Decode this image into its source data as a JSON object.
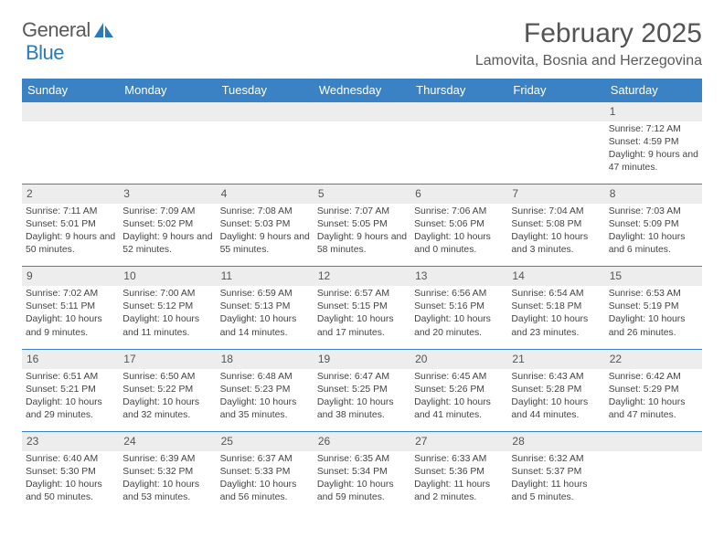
{
  "brand": {
    "part1": "General",
    "part2": "Blue",
    "color1": "#5a5a5a",
    "color2": "#2a7ab8"
  },
  "title": "February 2025",
  "location": "Lamovita, Bosnia and Herzegovina",
  "colors": {
    "header_bg": "#3b82c4",
    "header_text": "#ffffff",
    "daynum_bg": "#ededed",
    "border": "#3b82c4"
  },
  "day_headers": [
    "Sunday",
    "Monday",
    "Tuesday",
    "Wednesday",
    "Thursday",
    "Friday",
    "Saturday"
  ],
  "weeks": [
    [
      null,
      null,
      null,
      null,
      null,
      null,
      {
        "n": "1",
        "sr": "7:12 AM",
        "ss": "4:59 PM",
        "dl": "9 hours and 47 minutes."
      }
    ],
    [
      {
        "n": "2",
        "sr": "7:11 AM",
        "ss": "5:01 PM",
        "dl": "9 hours and 50 minutes."
      },
      {
        "n": "3",
        "sr": "7:09 AM",
        "ss": "5:02 PM",
        "dl": "9 hours and 52 minutes."
      },
      {
        "n": "4",
        "sr": "7:08 AM",
        "ss": "5:03 PM",
        "dl": "9 hours and 55 minutes."
      },
      {
        "n": "5",
        "sr": "7:07 AM",
        "ss": "5:05 PM",
        "dl": "9 hours and 58 minutes."
      },
      {
        "n": "6",
        "sr": "7:06 AM",
        "ss": "5:06 PM",
        "dl": "10 hours and 0 minutes."
      },
      {
        "n": "7",
        "sr": "7:04 AM",
        "ss": "5:08 PM",
        "dl": "10 hours and 3 minutes."
      },
      {
        "n": "8",
        "sr": "7:03 AM",
        "ss": "5:09 PM",
        "dl": "10 hours and 6 minutes."
      }
    ],
    [
      {
        "n": "9",
        "sr": "7:02 AM",
        "ss": "5:11 PM",
        "dl": "10 hours and 9 minutes."
      },
      {
        "n": "10",
        "sr": "7:00 AM",
        "ss": "5:12 PM",
        "dl": "10 hours and 11 minutes."
      },
      {
        "n": "11",
        "sr": "6:59 AM",
        "ss": "5:13 PM",
        "dl": "10 hours and 14 minutes."
      },
      {
        "n": "12",
        "sr": "6:57 AM",
        "ss": "5:15 PM",
        "dl": "10 hours and 17 minutes."
      },
      {
        "n": "13",
        "sr": "6:56 AM",
        "ss": "5:16 PM",
        "dl": "10 hours and 20 minutes."
      },
      {
        "n": "14",
        "sr": "6:54 AM",
        "ss": "5:18 PM",
        "dl": "10 hours and 23 minutes."
      },
      {
        "n": "15",
        "sr": "6:53 AM",
        "ss": "5:19 PM",
        "dl": "10 hours and 26 minutes."
      }
    ],
    [
      {
        "n": "16",
        "sr": "6:51 AM",
        "ss": "5:21 PM",
        "dl": "10 hours and 29 minutes."
      },
      {
        "n": "17",
        "sr": "6:50 AM",
        "ss": "5:22 PM",
        "dl": "10 hours and 32 minutes."
      },
      {
        "n": "18",
        "sr": "6:48 AM",
        "ss": "5:23 PM",
        "dl": "10 hours and 35 minutes."
      },
      {
        "n": "19",
        "sr": "6:47 AM",
        "ss": "5:25 PM",
        "dl": "10 hours and 38 minutes."
      },
      {
        "n": "20",
        "sr": "6:45 AM",
        "ss": "5:26 PM",
        "dl": "10 hours and 41 minutes."
      },
      {
        "n": "21",
        "sr": "6:43 AM",
        "ss": "5:28 PM",
        "dl": "10 hours and 44 minutes."
      },
      {
        "n": "22",
        "sr": "6:42 AM",
        "ss": "5:29 PM",
        "dl": "10 hours and 47 minutes."
      }
    ],
    [
      {
        "n": "23",
        "sr": "6:40 AM",
        "ss": "5:30 PM",
        "dl": "10 hours and 50 minutes."
      },
      {
        "n": "24",
        "sr": "6:39 AM",
        "ss": "5:32 PM",
        "dl": "10 hours and 53 minutes."
      },
      {
        "n": "25",
        "sr": "6:37 AM",
        "ss": "5:33 PM",
        "dl": "10 hours and 56 minutes."
      },
      {
        "n": "26",
        "sr": "6:35 AM",
        "ss": "5:34 PM",
        "dl": "10 hours and 59 minutes."
      },
      {
        "n": "27",
        "sr": "6:33 AM",
        "ss": "5:36 PM",
        "dl": "11 hours and 2 minutes."
      },
      {
        "n": "28",
        "sr": "6:32 AM",
        "ss": "5:37 PM",
        "dl": "11 hours and 5 minutes."
      },
      null
    ]
  ],
  "labels": {
    "sunrise": "Sunrise:",
    "sunset": "Sunset:",
    "daylight": "Daylight:"
  }
}
